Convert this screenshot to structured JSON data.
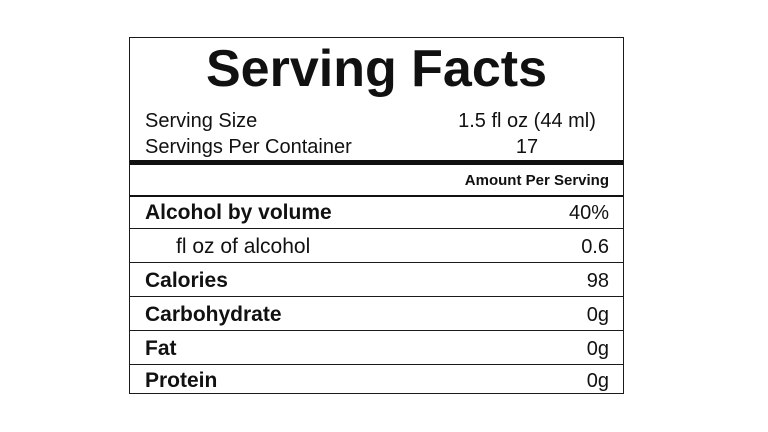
{
  "label": {
    "title": "Serving Facts",
    "serving_size_label": "Serving Size",
    "serving_size_value": "1.5 fl oz (44 ml)",
    "servings_per_container_label": "Servings Per Container",
    "servings_per_container_value": "17",
    "amount_header": "Amount Per Serving",
    "rows": [
      {
        "label": "Alcohol by volume",
        "value": "40%"
      },
      {
        "label": "fl oz of alcohol",
        "value": "0.6"
      },
      {
        "label": "Calories",
        "value": "98"
      },
      {
        "label": "Carbohydrate",
        "value": "0g"
      },
      {
        "label": "Fat",
        "value": "0g"
      },
      {
        "label": "Protein",
        "value": "0g"
      }
    ]
  }
}
